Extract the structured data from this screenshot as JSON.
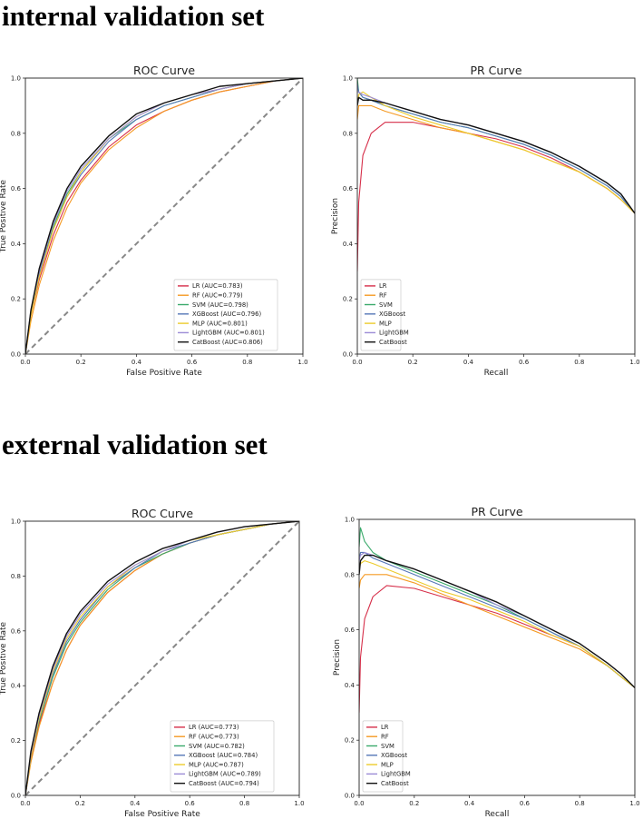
{
  "sections": {
    "internal": "internal validation set",
    "external": "external validation set"
  },
  "colors": {
    "LR": "#d62f4a",
    "RF": "#f59a23",
    "SVM": "#3aaa6b",
    "XGBoost": "#5577b7",
    "MLP": "#eccb2c",
    "LightGBM": "#9b8bd6",
    "CatBoost": "#111111",
    "chance": "#888888"
  },
  "chart_data": [
    {
      "id": "roc-internal",
      "type": "line",
      "title": "ROC Curve",
      "xlabel": "False Positive Rate",
      "ylabel": "True Positive Rate",
      "xlim": [
        0,
        1
      ],
      "ylim": [
        0,
        1
      ],
      "xticks": [
        "0.0",
        "0.2",
        "0.4",
        "0.6",
        "0.8",
        "1.0"
      ],
      "yticks": [
        "0.0",
        "0.2",
        "0.4",
        "0.6",
        "0.8",
        "1.0"
      ],
      "legend_position": "lower-right",
      "diagonal": true,
      "x": [
        0,
        0.02,
        0.05,
        0.1,
        0.15,
        0.2,
        0.3,
        0.4,
        0.5,
        0.6,
        0.7,
        0.8,
        0.9,
        1.0
      ],
      "series": [
        {
          "key": "LR",
          "name": "LR (AUC=0.783)",
          "values": [
            0,
            0.14,
            0.27,
            0.43,
            0.55,
            0.63,
            0.75,
            0.83,
            0.88,
            0.92,
            0.95,
            0.97,
            0.99,
            1.0
          ]
        },
        {
          "key": "RF",
          "name": "RF (AUC=0.779)",
          "values": [
            0,
            0.12,
            0.25,
            0.41,
            0.53,
            0.62,
            0.74,
            0.82,
            0.88,
            0.92,
            0.95,
            0.97,
            0.99,
            1.0
          ]
        },
        {
          "key": "SVM",
          "name": "SVM (AUC=0.798)",
          "values": [
            0,
            0.15,
            0.29,
            0.46,
            0.58,
            0.66,
            0.78,
            0.85,
            0.9,
            0.93,
            0.96,
            0.98,
            0.99,
            1.0
          ]
        },
        {
          "key": "XGBoost",
          "name": "XGBoost (AUC=0.796)",
          "values": [
            0,
            0.15,
            0.29,
            0.45,
            0.57,
            0.65,
            0.77,
            0.85,
            0.9,
            0.93,
            0.96,
            0.98,
            0.99,
            1.0
          ]
        },
        {
          "key": "MLP",
          "name": "MLP (AUC=0.801)",
          "values": [
            0,
            0.14,
            0.28,
            0.45,
            0.57,
            0.66,
            0.78,
            0.86,
            0.91,
            0.94,
            0.96,
            0.98,
            0.99,
            1.0
          ]
        },
        {
          "key": "LightGBM",
          "name": "LightGBM (AUC=0.801)",
          "values": [
            0,
            0.16,
            0.3,
            0.47,
            0.59,
            0.67,
            0.78,
            0.86,
            0.91,
            0.94,
            0.96,
            0.98,
            0.99,
            1.0
          ]
        },
        {
          "key": "CatBoost",
          "name": "CatBoost (AUC=0.806)",
          "values": [
            0,
            0.16,
            0.31,
            0.48,
            0.6,
            0.68,
            0.79,
            0.87,
            0.91,
            0.94,
            0.97,
            0.98,
            0.99,
            1.0
          ]
        }
      ]
    },
    {
      "id": "pr-internal",
      "type": "line",
      "title": "PR Curve",
      "xlabel": "Recall",
      "ylabel": "Precision",
      "xlim": [
        0,
        1
      ],
      "ylim": [
        0,
        1
      ],
      "xticks": [
        "0.0",
        "0.2",
        "0.4",
        "0.6",
        "0.8",
        "1.0"
      ],
      "yticks": [
        "0.0",
        "0.2",
        "0.4",
        "0.6",
        "0.8",
        "1.0"
      ],
      "legend_position": "lower-left",
      "diagonal": false,
      "x": [
        0,
        0.005,
        0.02,
        0.05,
        0.1,
        0.2,
        0.3,
        0.4,
        0.5,
        0.6,
        0.7,
        0.8,
        0.9,
        0.95,
        1.0
      ],
      "series": [
        {
          "key": "LR",
          "name": "LR",
          "values": [
            0.3,
            0.55,
            0.72,
            0.8,
            0.84,
            0.84,
            0.82,
            0.8,
            0.78,
            0.75,
            0.71,
            0.66,
            0.6,
            0.56,
            0.51
          ]
        },
        {
          "key": "RF",
          "name": "RF",
          "values": [
            0.85,
            0.9,
            0.9,
            0.9,
            0.88,
            0.85,
            0.82,
            0.8,
            0.77,
            0.74,
            0.7,
            0.66,
            0.6,
            0.56,
            0.51
          ]
        },
        {
          "key": "SVM",
          "name": "SVM",
          "values": [
            1.0,
            0.95,
            0.93,
            0.92,
            0.9,
            0.87,
            0.84,
            0.82,
            0.79,
            0.76,
            0.72,
            0.67,
            0.61,
            0.57,
            0.51
          ]
        },
        {
          "key": "XGBoost",
          "name": "XGBoost",
          "values": [
            0.98,
            0.95,
            0.93,
            0.92,
            0.9,
            0.87,
            0.84,
            0.82,
            0.79,
            0.76,
            0.72,
            0.67,
            0.61,
            0.57,
            0.51
          ]
        },
        {
          "key": "MLP",
          "name": "MLP",
          "values": [
            0.9,
            0.94,
            0.95,
            0.93,
            0.9,
            0.86,
            0.83,
            0.8,
            0.77,
            0.74,
            0.7,
            0.66,
            0.6,
            0.56,
            0.51
          ]
        },
        {
          "key": "LightGBM",
          "name": "LightGBM",
          "values": [
            0.95,
            0.95,
            0.94,
            0.93,
            0.91,
            0.88,
            0.85,
            0.83,
            0.8,
            0.77,
            0.73,
            0.68,
            0.62,
            0.58,
            0.51
          ]
        },
        {
          "key": "CatBoost",
          "name": "CatBoost",
          "values": [
            0.9,
            0.93,
            0.92,
            0.92,
            0.91,
            0.88,
            0.85,
            0.83,
            0.8,
            0.77,
            0.73,
            0.68,
            0.62,
            0.58,
            0.51
          ]
        }
      ]
    },
    {
      "id": "roc-external",
      "type": "line",
      "title": "ROC Curve",
      "xlabel": "False Positive Rate",
      "ylabel": "True Positive Rate",
      "xlim": [
        0,
        1
      ],
      "ylim": [
        0,
        1
      ],
      "xticks": [
        "0.0",
        "0.2",
        "0.4",
        "0.6",
        "0.8",
        "1.0"
      ],
      "yticks": [
        "0.0",
        "0.2",
        "0.4",
        "0.6",
        "0.8",
        "1.0"
      ],
      "legend_position": "lower-right",
      "diagonal": true,
      "x": [
        0,
        0.02,
        0.05,
        0.1,
        0.15,
        0.2,
        0.3,
        0.4,
        0.5,
        0.6,
        0.7,
        0.8,
        0.9,
        1.0
      ],
      "series": [
        {
          "key": "LR",
          "name": "LR (AUC=0.773)",
          "values": [
            0,
            0.13,
            0.26,
            0.41,
            0.53,
            0.62,
            0.74,
            0.82,
            0.88,
            0.92,
            0.95,
            0.97,
            0.99,
            1.0
          ]
        },
        {
          "key": "RF",
          "name": "RF (AUC=0.773)",
          "values": [
            0,
            0.12,
            0.25,
            0.41,
            0.53,
            0.62,
            0.74,
            0.82,
            0.88,
            0.92,
            0.95,
            0.97,
            0.99,
            1.0
          ]
        },
        {
          "key": "SVM",
          "name": "SVM (AUC=0.782)",
          "values": [
            0,
            0.14,
            0.27,
            0.43,
            0.55,
            0.63,
            0.75,
            0.83,
            0.88,
            0.92,
            0.95,
            0.97,
            0.99,
            1.0
          ]
        },
        {
          "key": "XGBoost",
          "name": "XGBoost (AUC=0.784)",
          "values": [
            0,
            0.14,
            0.28,
            0.44,
            0.56,
            0.64,
            0.76,
            0.83,
            0.89,
            0.92,
            0.95,
            0.97,
            0.99,
            1.0
          ]
        },
        {
          "key": "MLP",
          "name": "MLP (AUC=0.787)",
          "values": [
            0,
            0.14,
            0.28,
            0.45,
            0.57,
            0.65,
            0.76,
            0.84,
            0.89,
            0.93,
            0.95,
            0.97,
            0.99,
            1.0
          ]
        },
        {
          "key": "LightGBM",
          "name": "LightGBM (AUC=0.789)",
          "values": [
            0,
            0.15,
            0.29,
            0.46,
            0.58,
            0.66,
            0.77,
            0.84,
            0.89,
            0.93,
            0.96,
            0.98,
            0.99,
            1.0
          ]
        },
        {
          "key": "CatBoost",
          "name": "CatBoost (AUC=0.794)",
          "values": [
            0,
            0.16,
            0.3,
            0.47,
            0.59,
            0.67,
            0.78,
            0.85,
            0.9,
            0.93,
            0.96,
            0.98,
            0.99,
            1.0
          ]
        }
      ]
    },
    {
      "id": "pr-external",
      "type": "line",
      "title": "PR Curve",
      "xlabel": "Recall",
      "ylabel": "Precision",
      "xlim": [
        0,
        1
      ],
      "ylim": [
        0,
        1
      ],
      "xticks": [
        "0.0",
        "0.2",
        "0.4",
        "0.6",
        "0.8",
        "1.0"
      ],
      "yticks": [
        "0.0",
        "0.2",
        "0.4",
        "0.6",
        "0.8",
        "1.0"
      ],
      "legend_position": "lower-left",
      "diagonal": false,
      "x": [
        0,
        0.005,
        0.02,
        0.05,
        0.1,
        0.2,
        0.3,
        0.4,
        0.5,
        0.6,
        0.7,
        0.8,
        0.9,
        0.95,
        1.0
      ],
      "series": [
        {
          "key": "LR",
          "name": "LR",
          "values": [
            0.3,
            0.5,
            0.64,
            0.72,
            0.76,
            0.75,
            0.72,
            0.69,
            0.66,
            0.62,
            0.58,
            0.54,
            0.47,
            0.43,
            0.39
          ]
        },
        {
          "key": "RF",
          "name": "RF",
          "values": [
            0.75,
            0.78,
            0.8,
            0.8,
            0.8,
            0.77,
            0.73,
            0.69,
            0.65,
            0.61,
            0.57,
            0.53,
            0.47,
            0.43,
            0.39
          ]
        },
        {
          "key": "SVM",
          "name": "SVM",
          "values": [
            0.9,
            0.97,
            0.92,
            0.88,
            0.85,
            0.81,
            0.77,
            0.73,
            0.69,
            0.64,
            0.59,
            0.54,
            0.47,
            0.43,
            0.39
          ]
        },
        {
          "key": "XGBoost",
          "name": "XGBoost",
          "values": [
            0.85,
            0.88,
            0.88,
            0.86,
            0.84,
            0.8,
            0.76,
            0.72,
            0.68,
            0.64,
            0.59,
            0.54,
            0.47,
            0.43,
            0.39
          ]
        },
        {
          "key": "MLP",
          "name": "MLP",
          "values": [
            0.82,
            0.84,
            0.85,
            0.84,
            0.82,
            0.78,
            0.74,
            0.71,
            0.67,
            0.63,
            0.58,
            0.54,
            0.47,
            0.43,
            0.39
          ]
        },
        {
          "key": "LightGBM",
          "name": "LightGBM",
          "values": [
            0.85,
            0.87,
            0.88,
            0.87,
            0.85,
            0.82,
            0.78,
            0.74,
            0.69,
            0.65,
            0.6,
            0.55,
            0.48,
            0.44,
            0.39
          ]
        },
        {
          "key": "CatBoost",
          "name": "CatBoost",
          "values": [
            0.8,
            0.85,
            0.87,
            0.87,
            0.85,
            0.82,
            0.78,
            0.74,
            0.7,
            0.65,
            0.6,
            0.55,
            0.48,
            0.44,
            0.39
          ]
        }
      ]
    }
  ]
}
